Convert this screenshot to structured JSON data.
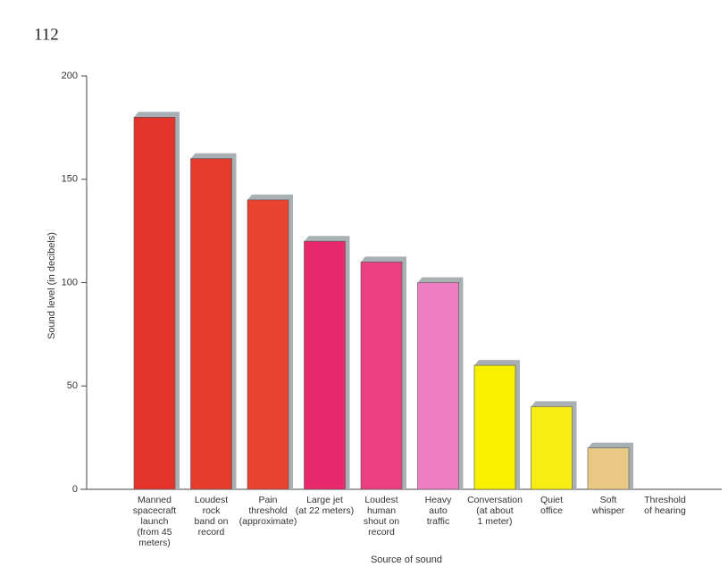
{
  "chart_data": {
    "type": "bar",
    "page_label": "112",
    "y_label": "Sound level (in decibels)",
    "x_label": "Source of sound",
    "categories": [
      "Manned\nspacecraft\nlaunch\n(from 45\nmeters)",
      "Loudest\nrock\nband on\nrecord",
      "Pain\nthreshold\n(approximate)",
      "Large jet\n(at 22 meters)",
      "Loudest\nhuman\nshout on\nrecord",
      "Heavy\nauto\ntraffic",
      "Conversation\n(at about\n1 meter)",
      "Quiet\noffice",
      "Soft\nwhisper",
      "Threshold\nof hearing"
    ],
    "values": [
      180,
      160,
      140,
      120,
      110,
      100,
      60,
      40,
      20,
      0
    ],
    "colors": [
      "#e4332b",
      "#e63a2f",
      "#e8432f",
      "#e82a6c",
      "#ea3f80",
      "#ee7dc2",
      "#f8f000",
      "#f6ee12",
      "#e9c985",
      "#cccccc"
    ],
    "ylim": [
      0,
      200
    ],
    "yticks": [
      0,
      50,
      100,
      150,
      200
    ]
  }
}
